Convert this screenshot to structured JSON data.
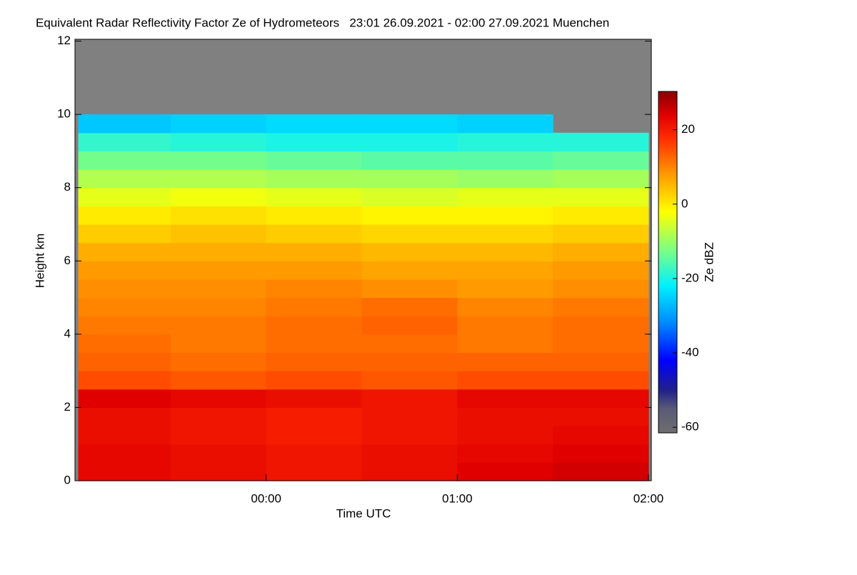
{
  "chart_data": {
    "type": "heatmap",
    "title": "Equivalent Radar Reflectivity Factor Ze of Hydrometeors   23:01 26.09.2021 - 02:00 27.09.2021 Muenchen",
    "xlabel": "Time UTC",
    "ylabel": "Height km",
    "colorbar_label": "Ze dBZ",
    "xlim": [
      -1,
      2.015
    ],
    "xticks": [
      {
        "value": 0,
        "label": "00:00"
      },
      {
        "value": 1,
        "label": "01:00"
      },
      {
        "value": 2,
        "label": "02:00"
      }
    ],
    "ylim": [
      0,
      12.05
    ],
    "yticks": [
      0,
      2,
      4,
      6,
      8,
      10,
      12
    ],
    "zlim": [
      -61.5,
      30.3
    ],
    "zticks": [
      -60,
      -40,
      -20,
      0,
      20
    ],
    "x_bins": [
      -0.983,
      -0.5,
      0,
      0.5,
      1,
      1.5,
      2
    ],
    "y_bins": [
      0,
      0.5,
      1,
      1.5,
      2,
      2.5,
      3,
      3.5,
      4,
      4.5,
      5,
      5.5,
      6,
      6.5,
      7,
      7.5,
      8,
      8.5,
      9,
      9.5,
      10
    ],
    "z": [
      [
        23,
        22,
        21,
        22,
        24,
        25
      ],
      [
        23,
        22,
        21,
        22,
        23,
        24
      ],
      [
        22,
        21,
        20,
        21,
        22,
        23
      ],
      [
        22,
        21,
        20,
        21,
        22,
        22
      ],
      [
        24,
        23,
        22,
        21,
        23,
        23
      ],
      [
        15,
        14,
        15,
        14,
        15,
        15
      ],
      [
        13,
        12,
        13,
        13,
        13,
        13
      ],
      [
        12,
        11,
        12,
        12,
        11,
        12
      ],
      [
        11,
        11,
        12,
        13,
        11,
        12
      ],
      [
        10,
        10,
        11,
        12,
        10,
        11
      ],
      [
        9,
        9,
        10,
        9,
        8,
        9
      ],
      [
        8,
        8,
        8,
        7,
        7,
        8
      ],
      [
        6,
        6,
        6,
        5,
        5,
        6
      ],
      [
        3,
        4,
        3,
        2,
        2,
        3
      ],
      [
        0,
        1,
        0,
        -1,
        -1,
        0
      ],
      [
        -4,
        -3,
        -4,
        -5,
        -4,
        -4
      ],
      [
        -8,
        -8,
        -9,
        -9,
        -10,
        -9
      ],
      [
        -13,
        -13,
        -14,
        -15,
        -15,
        -14
      ],
      [
        -18,
        -19,
        -20,
        -20,
        -19,
        -19
      ],
      [
        -26,
        -25,
        -24,
        -24,
        -25,
        null
      ]
    ],
    "background_color": "#808080"
  }
}
